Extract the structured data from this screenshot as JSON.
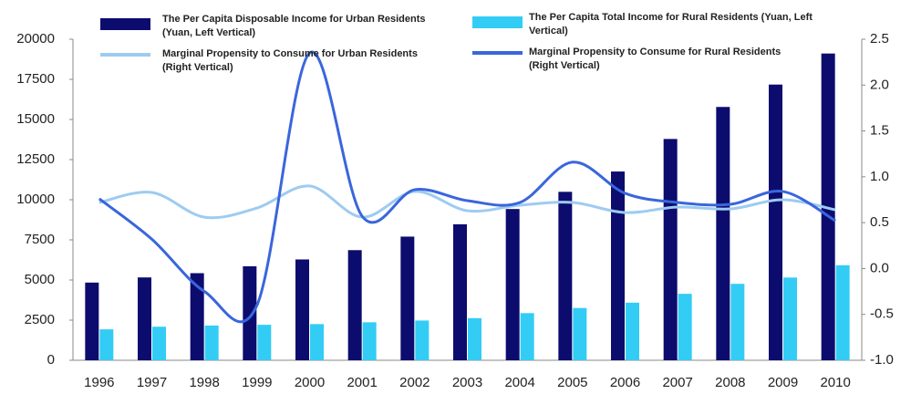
{
  "chart_data": {
    "type": "bar-line",
    "categories": [
      "1996",
      "1997",
      "1998",
      "1999",
      "2000",
      "2001",
      "2002",
      "2003",
      "2004",
      "2005",
      "2006",
      "2007",
      "2008",
      "2009",
      "2010"
    ],
    "series": [
      {
        "name": "The Per Capita Disposable Income for Urban Residents (Yuan, Left Vertical)",
        "type": "bar",
        "color": "#0c0c6e",
        "axis": "y",
        "values": [
          4839,
          5160,
          5425,
          5854,
          6280,
          6860,
          7703,
          8472,
          9422,
          10493,
          11759,
          13786,
          15781,
          17175,
          19109
        ]
      },
      {
        "name": "The Per Capita Total Income for Rural Residents (Yuan, Left Vertical)",
        "type": "bar",
        "color": "#33ccf5",
        "axis": "y",
        "values": [
          1926,
          2090,
          2162,
          2210,
          2253,
          2366,
          2476,
          2622,
          2936,
          3255,
          3587,
          4140,
          4761,
          5153,
          5919
        ]
      },
      {
        "name": "Marginal Propensity to Consume for Urban Residents (Right Vertical)",
        "type": "line",
        "color": "#9dcbf2",
        "axis": "y2",
        "values": [
          0.72,
          0.83,
          0.56,
          0.66,
          0.9,
          0.56,
          0.84,
          0.63,
          0.69,
          0.72,
          0.61,
          0.67,
          0.65,
          0.75,
          0.64
        ]
      },
      {
        "name": "Marginal Propensity to Consume for Rural Residents (Right Vertical)",
        "type": "line",
        "color": "#3a66dc",
        "axis": "y2",
        "values": [
          0.76,
          0.32,
          -0.25,
          -0.4,
          2.35,
          0.57,
          0.86,
          0.74,
          0.72,
          1.16,
          0.82,
          0.72,
          0.7,
          0.84,
          0.52
        ]
      }
    ],
    "ylim": [
      0,
      20000
    ],
    "yticks": [
      0,
      2500,
      5000,
      7500,
      10000,
      12500,
      15000,
      17500,
      20000
    ],
    "y2lim": [
      -1,
      2.5
    ],
    "y2ticks": [
      {
        "value": -1,
        "label": "-1.0"
      },
      -0.5,
      {
        "value": 0,
        "label": "0.0"
      },
      0.5,
      {
        "value": 1,
        "label": "1.0"
      },
      1.5,
      {
        "value": 2,
        "label": "2.0"
      },
      2.5
    ],
    "grid": false
  }
}
